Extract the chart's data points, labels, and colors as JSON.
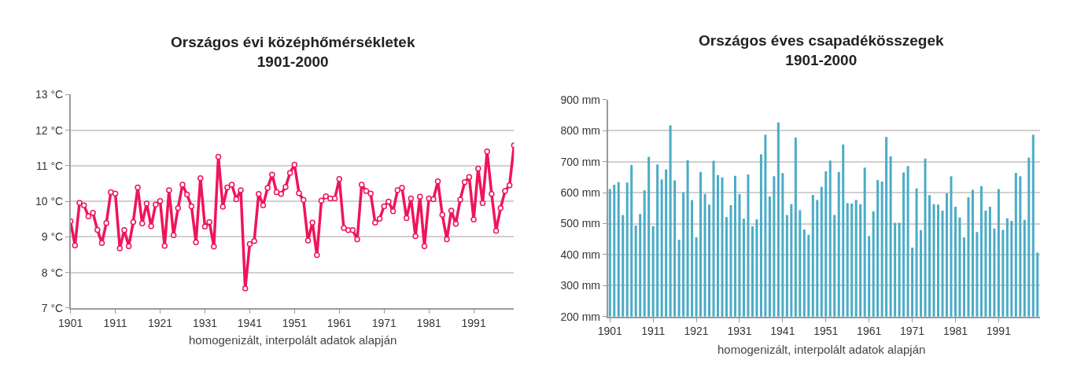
{
  "chart_data": [
    {
      "type": "line",
      "title": "Országos évi középhőmérsékletek\n1901-2000",
      "xlabel": "homogenizált, interpolált adatok alapján",
      "x": [
        1901,
        1902,
        1903,
        1904,
        1905,
        1906,
        1907,
        1908,
        1909,
        1910,
        1911,
        1912,
        1913,
        1914,
        1915,
        1916,
        1917,
        1918,
        1919,
        1920,
        1921,
        1922,
        1923,
        1924,
        1925,
        1926,
        1927,
        1928,
        1929,
        1930,
        1931,
        1932,
        1933,
        1934,
        1935,
        1936,
        1937,
        1938,
        1939,
        1940,
        1941,
        1942,
        1943,
        1944,
        1945,
        1946,
        1947,
        1948,
        1949,
        1950,
        1951,
        1952,
        1953,
        1954,
        1955,
        1956,
        1957,
        1958,
        1959,
        1960,
        1961,
        1962,
        1963,
        1964,
        1965,
        1966,
        1967,
        1968,
        1969,
        1970,
        1971,
        1972,
        1973,
        1974,
        1975,
        1976,
        1977,
        1978,
        1979,
        1980,
        1981,
        1982,
        1983,
        1984,
        1985,
        1986,
        1987,
        1988,
        1989,
        1990,
        1991,
        1992,
        1993,
        1994,
        1995,
        1996,
        1997,
        1998,
        1999,
        2000
      ],
      "series": [
        {
          "color": "#f0145a",
          "values": [
            9.44,
            8.76,
            9.96,
            9.89,
            9.58,
            9.68,
            9.2,
            8.83,
            9.39,
            10.26,
            10.22,
            8.68,
            9.19,
            8.74,
            9.42,
            10.39,
            9.38,
            9.94,
            9.3,
            9.91,
            10.01,
            8.75,
            10.31,
            9.05,
            9.81,
            10.47,
            10.19,
            9.86,
            8.85,
            10.65,
            9.29,
            9.42,
            8.73,
            11.25,
            9.85,
            10.39,
            10.47,
            10.06,
            10.31,
            7.55,
            8.8,
            8.88,
            10.21,
            9.89,
            10.38,
            10.75,
            10.26,
            10.21,
            10.4,
            10.8,
            11.03,
            10.23,
            10.04,
            8.9,
            9.4,
            8.49,
            10.02,
            10.14,
            10.08,
            10.08,
            10.63,
            9.25,
            9.19,
            9.19,
            8.93,
            10.47,
            10.29,
            10.22,
            9.4,
            9.51,
            9.86,
            9.99,
            9.72,
            10.31,
            10.38,
            9.53,
            10.08,
            9.02,
            10.13,
            8.74,
            10.08,
            10.06,
            10.56,
            9.62,
            8.93,
            9.74,
            9.37,
            10.05,
            10.54,
            10.68,
            9.49,
            10.92,
            9.95,
            11.4,
            10.21,
            9.17,
            9.81,
            10.29,
            10.45,
            11.57
          ]
        }
      ],
      "xlim": [
        1901,
        2000
      ],
      "xticks": [
        1901,
        1911,
        1921,
        1931,
        1941,
        1951,
        1961,
        1971,
        1981,
        1991
      ],
      "ylim": [
        7,
        13
      ],
      "yticks": [
        {
          "value": 7,
          "label": "7 °C"
        },
        {
          "value": 8,
          "label": "8 °C"
        },
        {
          "value": 9,
          "label": "9 °C"
        },
        {
          "value": 10,
          "label": "10 °C"
        },
        {
          "value": 11,
          "label": "11 °C"
        },
        {
          "value": 12,
          "label": "12 °C"
        },
        {
          "value": 13,
          "label": "13 °C"
        }
      ],
      "grid": "y",
      "marker": "circle",
      "line_style": "solid"
    },
    {
      "type": "bar",
      "title": "Országos éves csapadékösszegek\n1901-2000",
      "xlabel": "homogenizált, interpolált adatok alapján",
      "x": [
        1901,
        1902,
        1903,
        1904,
        1905,
        1906,
        1907,
        1908,
        1909,
        1910,
        1911,
        1912,
        1913,
        1914,
        1915,
        1916,
        1917,
        1918,
        1919,
        1920,
        1921,
        1922,
        1923,
        1924,
        1925,
        1926,
        1927,
        1928,
        1929,
        1930,
        1931,
        1932,
        1933,
        1934,
        1935,
        1936,
        1937,
        1938,
        1939,
        1940,
        1941,
        1942,
        1943,
        1944,
        1945,
        1946,
        1947,
        1948,
        1949,
        1950,
        1951,
        1952,
        1953,
        1954,
        1955,
        1956,
        1957,
        1958,
        1959,
        1960,
        1961,
        1962,
        1963,
        1964,
        1965,
        1966,
        1967,
        1968,
        1969,
        1970,
        1971,
        1972,
        1973,
        1974,
        1975,
        1976,
        1977,
        1978,
        1979,
        1980,
        1981,
        1982,
        1983,
        1984,
        1985,
        1986,
        1987,
        1988,
        1989,
        1990,
        1991,
        1992,
        1993,
        1994,
        1995,
        1996,
        1997,
        1998,
        1999,
        2000
      ],
      "series": [
        {
          "color": "#4bacc6",
          "values": [
            612,
            626,
            634,
            528,
            633,
            690,
            494,
            531,
            608,
            716,
            492,
            691,
            643,
            675,
            817,
            640,
            448,
            601,
            705,
            576,
            456,
            667,
            596,
            562,
            703,
            657,
            649,
            521,
            560,
            654,
            595,
            516,
            659,
            491,
            514,
            724,
            787,
            588,
            653,
            827,
            663,
            528,
            563,
            778,
            543,
            481,
            464,
            593,
            576,
            619,
            669,
            704,
            528,
            667,
            756,
            566,
            565,
            577,
            563,
            681,
            460,
            540,
            641,
            636,
            780,
            717,
            503,
            503,
            665,
            686,
            423,
            614,
            479,
            710,
            592,
            563,
            562,
            542,
            598,
            653,
            555,
            520,
            456,
            585,
            609,
            473,
            621,
            542,
            555,
            484,
            612,
            480,
            517,
            509,
            664,
            653,
            512,
            713,
            787,
            407
          ]
        }
      ],
      "xlim": [
        1900.5,
        2000.5
      ],
      "xticks": [
        1901,
        1911,
        1921,
        1931,
        1941,
        1951,
        1961,
        1971,
        1981,
        1991
      ],
      "ylim": [
        200,
        900
      ],
      "yticks": [
        {
          "value": 200,
          "label": "200 mm"
        },
        {
          "value": 300,
          "label": "300 mm"
        },
        {
          "value": 400,
          "label": "400 mm"
        },
        {
          "value": 500,
          "label": "500 mm"
        },
        {
          "value": 600,
          "label": "600 mm"
        },
        {
          "value": 700,
          "label": "700 mm"
        },
        {
          "value": 800,
          "label": "800 mm"
        },
        {
          "value": 900,
          "label": "900 mm"
        }
      ],
      "grid": "y"
    }
  ]
}
